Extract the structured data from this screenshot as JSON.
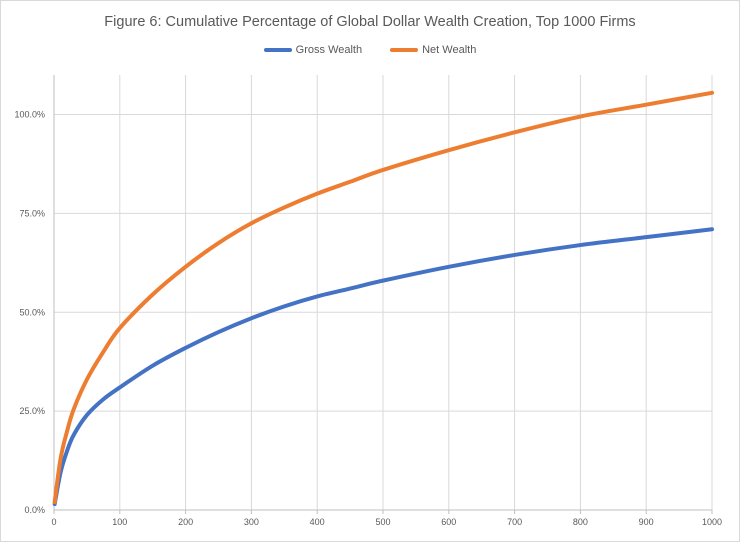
{
  "chart_data": {
    "type": "line",
    "title": "Figure 6: Cumulative Percentage of Global Dollar Wealth Creation, Top 1000 Firms",
    "xlabel": "",
    "ylabel": "",
    "xlim": [
      0,
      1000
    ],
    "ylim": [
      0,
      1.1
    ],
    "x_ticks": [
      0,
      100,
      200,
      300,
      400,
      500,
      600,
      700,
      800,
      900,
      1000
    ],
    "x_tick_labels": [
      "0",
      "100",
      "200",
      "300",
      "400",
      "500",
      "600",
      "700",
      "800",
      "900",
      "1000"
    ],
    "y_ticks": [
      0,
      0.25,
      0.5,
      0.75,
      1.0
    ],
    "y_tick_labels": [
      "0.0%",
      "25.0%",
      "50.0%",
      "75.0%",
      "100.0%"
    ],
    "grid": true,
    "legend_position": "top",
    "x": [
      1,
      10,
      20,
      30,
      50,
      75,
      100,
      150,
      200,
      250,
      300,
      350,
      400,
      450,
      500,
      600,
      700,
      800,
      900,
      1000
    ],
    "series": [
      {
        "name": "Gross Wealth",
        "color": "#4472c4",
        "values": [
          0.015,
          0.095,
          0.15,
          0.19,
          0.24,
          0.28,
          0.31,
          0.365,
          0.41,
          0.45,
          0.485,
          0.515,
          0.54,
          0.56,
          0.58,
          0.615,
          0.645,
          0.67,
          0.69,
          0.71
        ]
      },
      {
        "name": "Net Wealth",
        "color": "#ed7d31",
        "values": [
          0.02,
          0.13,
          0.2,
          0.255,
          0.33,
          0.4,
          0.46,
          0.545,
          0.615,
          0.675,
          0.725,
          0.765,
          0.8,
          0.83,
          0.86,
          0.91,
          0.955,
          0.995,
          1.025,
          1.055
        ]
      }
    ]
  }
}
